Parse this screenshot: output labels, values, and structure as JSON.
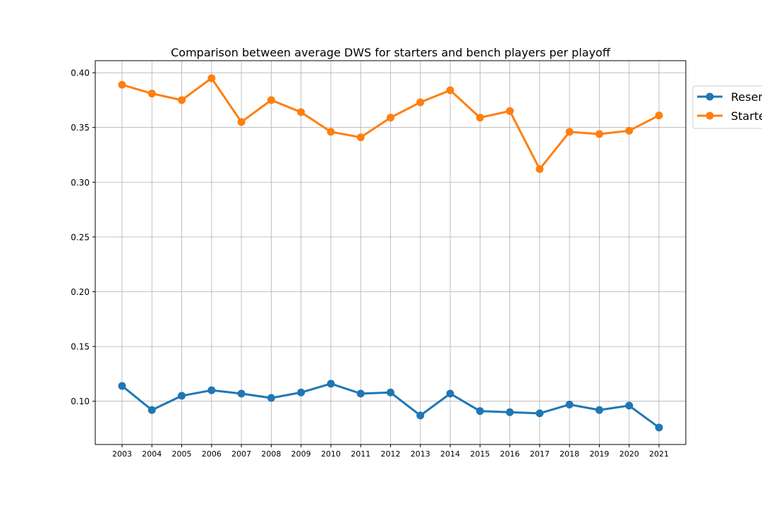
{
  "chart_data": {
    "type": "line",
    "title": "Comparison between average DWS for starters and bench players per playoff",
    "xlabel": "",
    "ylabel": "",
    "categories": [
      "2003",
      "2004",
      "2005",
      "2006",
      "2007",
      "2008",
      "2009",
      "2010",
      "2011",
      "2012",
      "2013",
      "2014",
      "2015",
      "2016",
      "2017",
      "2018",
      "2019",
      "2020",
      "2021"
    ],
    "ylim": [
      0.0605,
      0.411
    ],
    "yticks": [
      "0.10",
      "0.15",
      "0.20",
      "0.25",
      "0.30",
      "0.35",
      "0.40"
    ],
    "grid": true,
    "legend_position": "outside-top-right",
    "series": [
      {
        "name": "Reserves",
        "legend_label": "Reser",
        "color": "#1f77b4",
        "values": [
          0.114,
          0.092,
          0.105,
          0.11,
          0.107,
          0.103,
          0.108,
          0.116,
          0.107,
          0.108,
          0.087,
          0.107,
          0.091,
          0.09,
          0.089,
          0.097,
          0.092,
          0.096,
          0.076
        ]
      },
      {
        "name": "Starters",
        "legend_label": "Starte",
        "color": "#ff7f0e",
        "values": [
          0.389,
          0.381,
          0.375,
          0.395,
          0.355,
          0.375,
          0.364,
          0.346,
          0.341,
          0.359,
          0.373,
          0.384,
          0.359,
          0.365,
          0.312,
          0.346,
          0.344,
          0.347,
          0.361
        ]
      }
    ]
  }
}
